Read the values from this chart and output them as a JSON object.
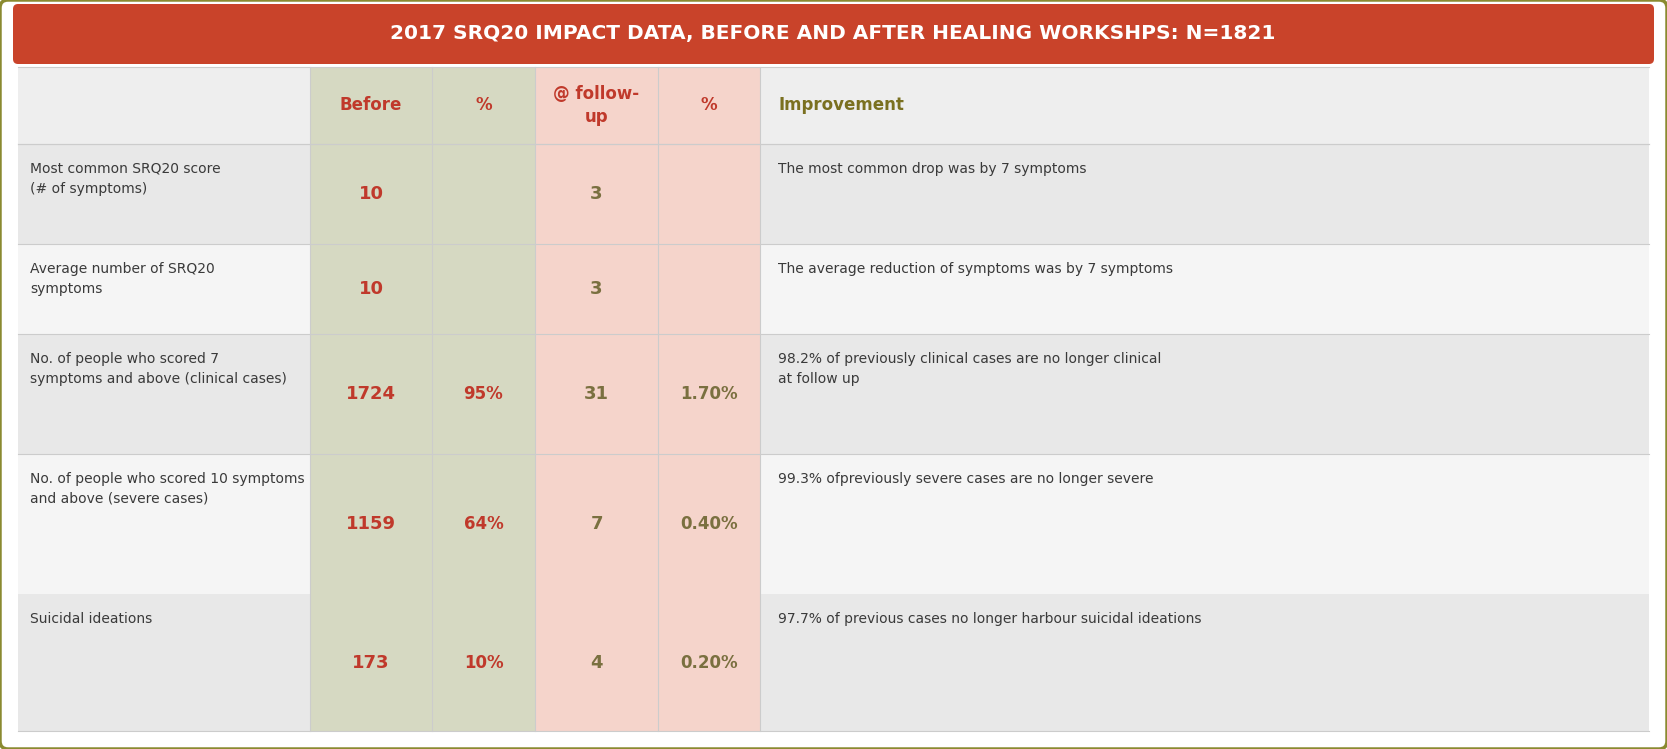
{
  "title": "2017 SRQ20 IMPACT DATA, BEFORE AND AFTER HEALING WORKSHPS: N=1821",
  "title_bg": "#c9432a",
  "title_color": "#ffffff",
  "header_row": [
    "Before",
    "%",
    "@ follow-\nup",
    "%",
    "Improvement"
  ],
  "header_color": "#c0392b",
  "header_improvement_text_color": "#7a7020",
  "rows": [
    {
      "label": "Most common SRQ20 score\n(# of symptoms)",
      "before": "10",
      "pct_before": "",
      "after": "3",
      "pct_after": "",
      "improvement": "The most common drop was by 7 symptoms"
    },
    {
      "label": "Average number of SRQ20\nsymptoms",
      "before": "10",
      "pct_before": "",
      "after": "3",
      "pct_after": "",
      "improvement": "The average reduction of symptoms was by 7 symptoms"
    },
    {
      "label": "No. of people who scored 7\nsymptoms and above (clinical cases)",
      "before": "1724",
      "pct_before": "95%",
      "after": "31",
      "pct_after": "1.70%",
      "improvement": "98.2% of previously clinical cases are no longer clinical\nat follow up"
    },
    {
      "label": "No. of people who scored 10 symptoms\nand above (severe cases)",
      "before": "1159",
      "pct_before": "64%",
      "after": "7",
      "pct_after": "0.40%",
      "improvement": "99.3% ofpreviously severe cases are no longer severe"
    },
    {
      "label": "Suicidal ideations",
      "before": "173",
      "pct_before": "10%",
      "after": "4",
      "pct_after": "0.20%",
      "improvement": "97.7% of previous cases no longer harbour suicidal ideations"
    }
  ],
  "col_before_bg": "#d6d9c2",
  "col_after_bg": "#f5d4cb",
  "row_bg_even": "#e8e8e8",
  "row_bg_odd": "#f5f5f5",
  "before_value_color": "#c0392b",
  "pct_before_color": "#c0392b",
  "after_value_color": "#7a7040",
  "pct_after_color": "#7a7040",
  "improvement_color": "#3a3a3a",
  "label_color": "#3a3a3a",
  "outer_border_color": "#8a8a30",
  "outer_bg": "#ffffff",
  "divider_color": "#cccccc"
}
